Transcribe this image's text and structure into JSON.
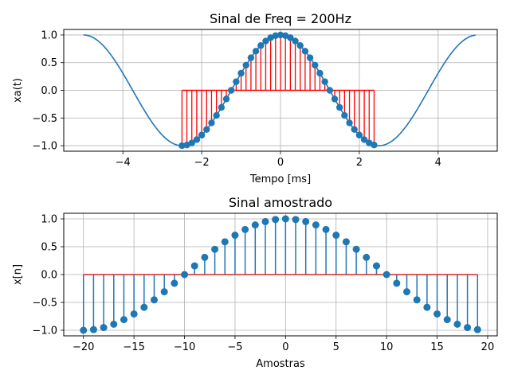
{
  "chart_data": [
    {
      "type": "line",
      "title": "Sinal de Freq = 200Hz",
      "xlabel": "Tempo [ms]",
      "ylabel": "xa(t)",
      "xlim": [
        -5.5,
        5.5
      ],
      "ylim": [
        -1.1,
        1.1
      ],
      "xticks": [
        -4,
        -2,
        0,
        2,
        4
      ],
      "xtick_labels": [
        "−4",
        "−2",
        "0",
        "2",
        "4"
      ],
      "yticks": [
        -1.0,
        -0.5,
        0.0,
        0.5,
        1.0
      ],
      "ytick_labels": [
        "−1.0",
        "−0.5",
        "0.0",
        "0.5",
        "1.0"
      ],
      "grid": true,
      "series": [
        {
          "kind": "continuous line",
          "formula": "cos(2*pi*0.2*t), t in ms",
          "x_range": [
            -5,
            4.95
          ],
          "color": "#1f77b4"
        },
        {
          "kind": "stem",
          "x": [
            -2.5,
            -2.375,
            -2.25,
            -2.125,
            -2.0,
            -1.875,
            -1.75,
            -1.625,
            -1.5,
            -1.375,
            -1.25,
            -1.125,
            -1.0,
            -0.875,
            -0.75,
            -0.625,
            -0.5,
            -0.375,
            -0.25,
            -0.125,
            0.0,
            0.125,
            0.25,
            0.375,
            0.5,
            0.625,
            0.75,
            0.875,
            1.0,
            1.125,
            1.25,
            1.375,
            1.5,
            1.625,
            1.75,
            1.875,
            2.0,
            2.125,
            2.25,
            2.375
          ],
          "y": [
            -1.0,
            -0.988,
            -0.951,
            -0.891,
            -0.809,
            -0.707,
            -0.588,
            -0.454,
            -0.309,
            -0.156,
            0.0,
            0.156,
            0.309,
            0.454,
            0.588,
            0.707,
            0.809,
            0.891,
            0.951,
            0.988,
            1.0,
            0.988,
            0.951,
            0.891,
            0.809,
            0.707,
            0.588,
            0.454,
            0.309,
            0.156,
            0.0,
            -0.156,
            -0.309,
            -0.454,
            -0.588,
            -0.707,
            -0.809,
            -0.891,
            -0.951,
            -0.988
          ],
          "stem_color": "#ff0000",
          "marker_color": "#1f77b4",
          "baseline_color": "#ff0000"
        }
      ]
    },
    {
      "type": "stem",
      "title": "Sinal amostrado",
      "xlabel": "Amostras",
      "ylabel": "x[n]",
      "xlim": [
        -21.95,
        20.95
      ],
      "ylim": [
        -1.1,
        1.1
      ],
      "xticks": [
        -20,
        -15,
        -10,
        -5,
        0,
        5,
        10,
        15,
        20
      ],
      "xtick_labels": [
        "−20",
        "−15",
        "−10",
        "−5",
        "0",
        "5",
        "10",
        "15",
        "20"
      ],
      "yticks": [
        -1.0,
        -0.5,
        0.0,
        0.5,
        1.0
      ],
      "ytick_labels": [
        "−1.0",
        "−0.5",
        "0.0",
        "0.5",
        "1.0"
      ],
      "grid": true,
      "series": [
        {
          "x": [
            -20,
            -19,
            -18,
            -17,
            -16,
            -15,
            -14,
            -13,
            -12,
            -11,
            -10,
            -9,
            -8,
            -7,
            -6,
            -5,
            -4,
            -3,
            -2,
            -1,
            0,
            1,
            2,
            3,
            4,
            5,
            6,
            7,
            8,
            9,
            10,
            11,
            12,
            13,
            14,
            15,
            16,
            17,
            18,
            19
          ],
          "y": [
            -1.0,
            -0.988,
            -0.951,
            -0.891,
            -0.809,
            -0.707,
            -0.588,
            -0.454,
            -0.309,
            -0.156,
            0.0,
            0.156,
            0.309,
            0.454,
            0.588,
            0.707,
            0.809,
            0.891,
            0.951,
            0.988,
            1.0,
            0.988,
            0.951,
            0.891,
            0.809,
            0.707,
            0.588,
            0.454,
            0.309,
            0.156,
            0.0,
            -0.156,
            -0.309,
            -0.454,
            -0.588,
            -0.707,
            -0.809,
            -0.891,
            -0.951,
            -0.988
          ],
          "stem_color": "#1f77b4",
          "marker_color": "#1f77b4",
          "baseline_color": "#d62728"
        }
      ]
    }
  ],
  "colors": {
    "line": "#1f77b4",
    "red_stem": "#ff0000",
    "baseline_red": "#d62728",
    "grid": "#b0b0b0",
    "axes": "#000000"
  }
}
